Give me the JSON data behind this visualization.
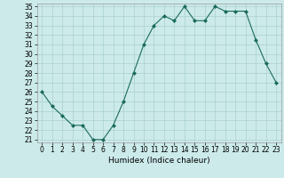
{
  "x": [
    0,
    1,
    2,
    3,
    4,
    5,
    6,
    7,
    8,
    9,
    10,
    11,
    12,
    13,
    14,
    15,
    16,
    17,
    18,
    19,
    20,
    21,
    22,
    23
  ],
  "y": [
    26,
    24.5,
    23.5,
    22.5,
    22.5,
    21,
    21,
    22.5,
    25,
    28,
    31,
    33,
    34,
    33.5,
    35,
    33.5,
    33.5,
    35,
    34.5,
    34.5,
    34.5,
    31.5,
    29,
    27
  ],
  "line_color": "#1a6b5a",
  "marker": "D",
  "marker_size": 2,
  "bg_color": "#cceaea",
  "grid_color": "#aacfcf",
  "xlabel": "Humidex (Indice chaleur)",
  "ylim_min": 21,
  "ylim_max": 35,
  "xlim_min": -0.5,
  "xlim_max": 23.5,
  "yticks": [
    21,
    22,
    23,
    24,
    25,
    26,
    27,
    28,
    29,
    30,
    31,
    32,
    33,
    34,
    35
  ],
  "xticks": [
    0,
    1,
    2,
    3,
    4,
    5,
    6,
    7,
    8,
    9,
    10,
    11,
    12,
    13,
    14,
    15,
    16,
    17,
    18,
    19,
    20,
    21,
    22,
    23
  ],
  "label_fontsize": 6.5,
  "tick_fontsize": 5.5
}
